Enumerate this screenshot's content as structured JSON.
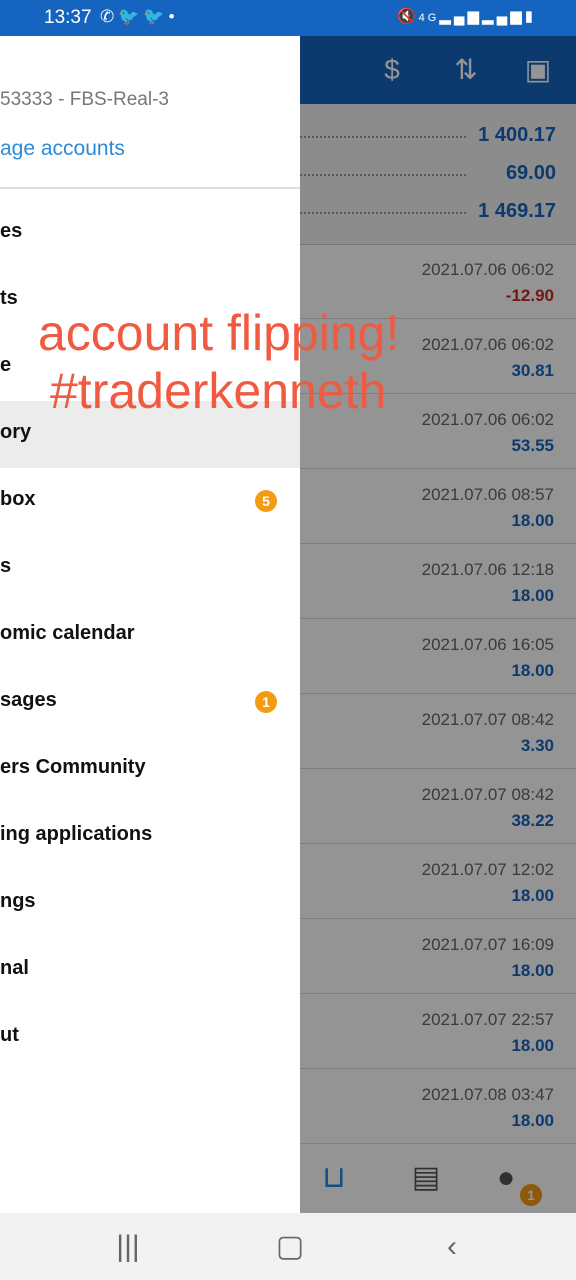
{
  "status_bar": {
    "time": "13:37",
    "left_icons": [
      "whatsapp-icon",
      "twitter-icon",
      "twitter-icon",
      "dot-icon"
    ],
    "right_icons": [
      "mute-icon",
      "4g-icon",
      "signal-icon",
      "signal-icon",
      "battery-icon"
    ]
  },
  "toolbar": {
    "icons": [
      "currency-exchange-icon",
      "sort-icon",
      "calendar-icon"
    ]
  },
  "summary": {
    "values": [
      "1 400.17",
      "69.00",
      "1 469.17"
    ]
  },
  "deals": [
    {
      "date": "2021.07.06 06:02",
      "profit": "-12.90",
      "negative": true
    },
    {
      "date": "2021.07.06 06:02",
      "profit": "30.81",
      "negative": false
    },
    {
      "date": "2021.07.06 06:02",
      "profit": "53.55",
      "negative": false
    },
    {
      "date": "2021.07.06 08:57",
      "profit": "18.00",
      "negative": false
    },
    {
      "date": "2021.07.06 12:18",
      "profit": "18.00",
      "negative": false
    },
    {
      "date": "2021.07.06 16:05",
      "profit": "18.00",
      "negative": false
    },
    {
      "date": "2021.07.07 08:42",
      "profit": "3.30",
      "negative": false
    },
    {
      "date": "2021.07.07 08:42",
      "profit": "38.22",
      "negative": false
    },
    {
      "date": "2021.07.07 12:02",
      "profit": "18.00",
      "negative": false
    },
    {
      "date": "2021.07.07 16:09",
      "profit": "18.00",
      "negative": false
    },
    {
      "date": "2021.07.07 22:57",
      "profit": "18.00",
      "negative": false
    },
    {
      "date": "2021.07.08 03:47",
      "profit": "18.00",
      "negative": false
    }
  ],
  "drawer": {
    "account_number": "53333 - FBS-Real-3",
    "manage_accounts": "age accounts",
    "items": [
      {
        "label": "es",
        "badge": ""
      },
      {
        "label": "ts",
        "badge": ""
      },
      {
        "label": "e",
        "badge": ""
      },
      {
        "label": "ory",
        "badge": ""
      },
      {
        "label": "box",
        "badge": "5"
      },
      {
        "label": "s",
        "badge": ""
      },
      {
        "label": "omic calendar",
        "badge": ""
      },
      {
        "label": "sages",
        "badge": "1"
      },
      {
        "label": "ers Community",
        "badge": ""
      },
      {
        "label": "ing applications",
        "badge": ""
      },
      {
        "label": "ngs",
        "badge": ""
      },
      {
        "label": "nal",
        "badge": ""
      },
      {
        "label": "ut",
        "badge": ""
      }
    ],
    "active_index": 3
  },
  "overlay_text": {
    "line1": "account flipping!",
    "line2": "#traderkenneth"
  },
  "bottom_nav": {
    "icons": [
      "inbox-icon",
      "news-icon",
      "chat-icon"
    ],
    "chat_badge": "1"
  },
  "system_nav": {
    "icons": [
      "recents-icon",
      "home-icon",
      "back-icon"
    ]
  },
  "colors": {
    "brand": "#1565c0",
    "negative": "#c62828",
    "badge": "#f39c12",
    "overlay_text": "#f05a40"
  }
}
